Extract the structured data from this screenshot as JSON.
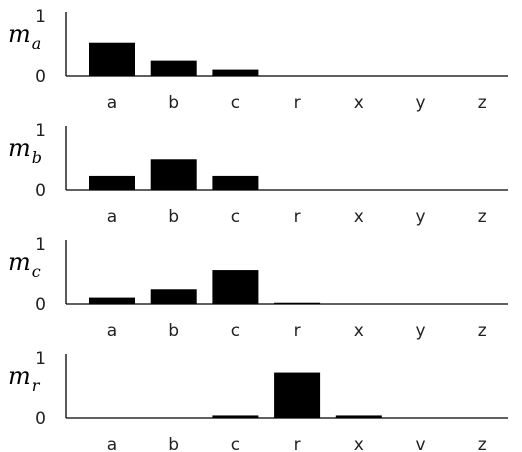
{
  "chart_data": [
    {
      "type": "bar",
      "ylabel_main": "m",
      "ylabel_sub": "a",
      "categories": [
        "a",
        "b",
        "c",
        "r",
        "x",
        "y",
        "z"
      ],
      "values": [
        0.52,
        0.24,
        0.1,
        0.0,
        0.0,
        0.0,
        0.0
      ],
      "yticks": [
        "0",
        "1"
      ],
      "ylim": [
        0,
        1
      ]
    },
    {
      "type": "bar",
      "ylabel_main": "m",
      "ylabel_sub": "b",
      "categories": [
        "a",
        "b",
        "c",
        "r",
        "x",
        "y",
        "z"
      ],
      "values": [
        0.22,
        0.48,
        0.22,
        0.0,
        0.0,
        0.0,
        0.0
      ],
      "yticks": [
        "0",
        "1"
      ],
      "ylim": [
        0,
        1
      ]
    },
    {
      "type": "bar",
      "ylabel_main": "m",
      "ylabel_sub": "c",
      "categories": [
        "a",
        "b",
        "c",
        "r",
        "x",
        "y",
        "z"
      ],
      "values": [
        0.1,
        0.23,
        0.53,
        0.02,
        0.0,
        0.0,
        0.0
      ],
      "yticks": [
        "0",
        "1"
      ],
      "ylim": [
        0,
        1
      ]
    },
    {
      "type": "bar",
      "ylabel_main": "m",
      "ylabel_sub": "r",
      "categories": [
        "a",
        "b",
        "c",
        "r",
        "x",
        "v",
        "z"
      ],
      "values": [
        0.0,
        0.0,
        0.04,
        0.71,
        0.04,
        0.0,
        0.0
      ],
      "yticks": [
        "0",
        "1"
      ],
      "ylim": [
        0,
        1
      ]
    }
  ]
}
